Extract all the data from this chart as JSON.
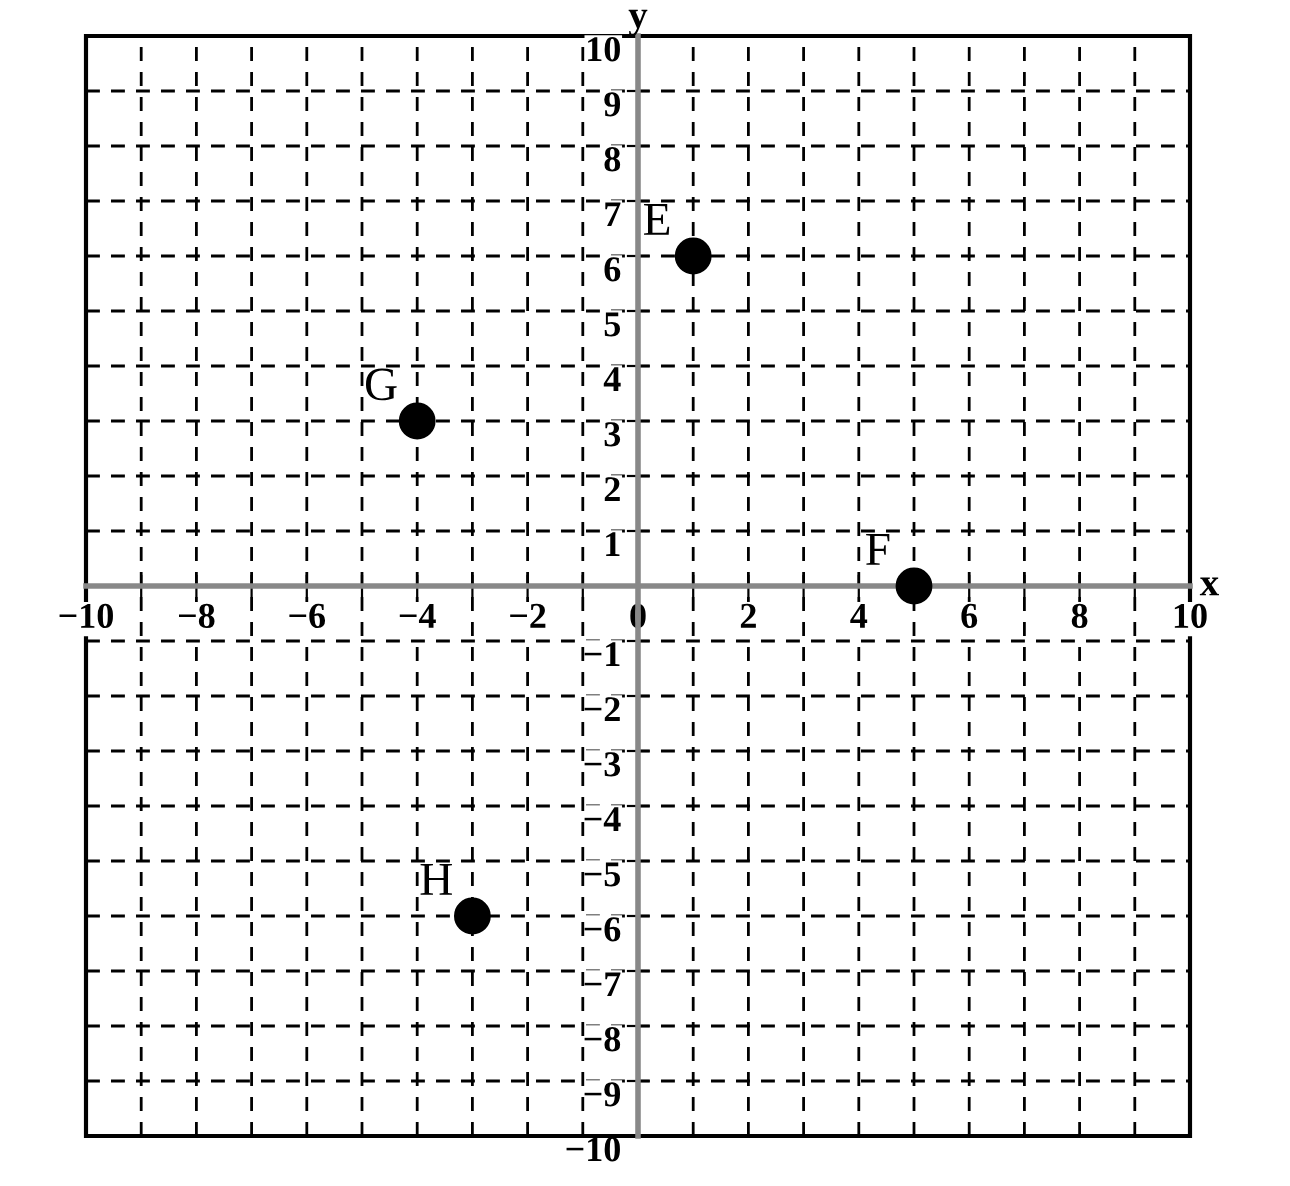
{
  "chart_data": {
    "type": "scatter",
    "xlabel": "x",
    "ylabel": "y",
    "x": [
      1,
      5,
      -4,
      -3
    ],
    "values": [
      6,
      0,
      3,
      -6
    ],
    "color": "#000000",
    "marker": "circle",
    "xlim": [
      -10,
      10
    ],
    "ylim": [
      -10,
      10
    ],
    "xticks": [
      -10,
      {
        "value": -9,
        "label": null
      },
      -8,
      {
        "value": -7,
        "label": null
      },
      -6,
      {
        "value": -5,
        "label": null
      },
      -4,
      {
        "value": -3,
        "label": null
      },
      -2,
      {
        "value": -1,
        "label": null
      },
      0,
      {
        "value": 1,
        "label": null
      },
      2,
      {
        "value": 3,
        "label": null
      },
      4,
      {
        "value": 5,
        "label": null
      },
      6,
      {
        "value": 7,
        "label": null
      },
      8,
      {
        "value": 9,
        "label": null
      },
      10
    ],
    "yticks": [
      -10,
      -9,
      -8,
      -7,
      -6,
      -5,
      -4,
      -3,
      -2,
      -1,
      {
        "value": 0,
        "label": null
      },
      1,
      2,
      3,
      4,
      5,
      6,
      7,
      8,
      9,
      10
    ],
    "grid": true,
    "annotations": [
      {
        "text": "E",
        "x": 1,
        "y": 6
      },
      {
        "text": "F",
        "x": 5,
        "y": 0
      },
      {
        "text": "G",
        "x": -4,
        "y": 3
      },
      {
        "text": "H",
        "x": -3,
        "y": -6
      }
    ]
  }
}
